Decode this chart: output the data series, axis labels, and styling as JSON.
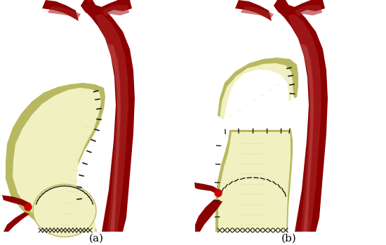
{
  "bg": "#ffffff",
  "aorta_dark": "#8B0000",
  "aorta_mid": "#A52020",
  "aorta_light": "#C05050",
  "aorta_highlight": "#D07070",
  "graft_light": "#F0F0C0",
  "graft_mid": "#D8D890",
  "graft_dark": "#B8B860",
  "graft_shadow": "#909050",
  "stitch": "#1a1a1a",
  "coronary_red": "#CC0000",
  "label_a": "(a)",
  "label_b": "(b)",
  "fw": 5.5,
  "fh": 3.49,
  "dpi": 100
}
